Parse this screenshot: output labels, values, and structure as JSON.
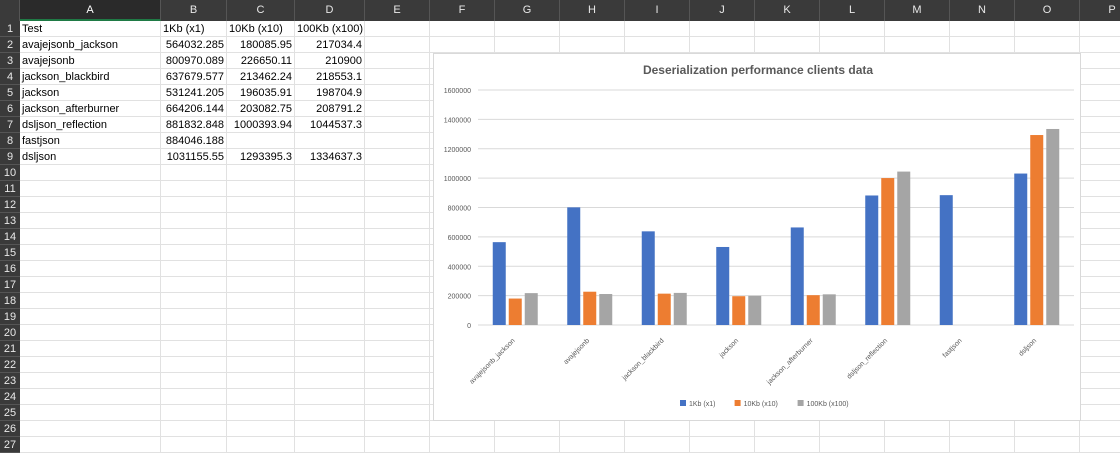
{
  "columns": [
    "A",
    "B",
    "C",
    "D",
    "E",
    "F",
    "G",
    "H",
    "I",
    "J",
    "K",
    "L",
    "M",
    "N",
    "O",
    "P"
  ],
  "selected_column": "A",
  "rows": [
    "1",
    "2",
    "3",
    "4",
    "5",
    "6",
    "7",
    "8",
    "9",
    "10",
    "11",
    "12",
    "13",
    "14",
    "15",
    "16",
    "17",
    "18",
    "19",
    "20",
    "21",
    "22",
    "23",
    "24",
    "25",
    "26",
    "27"
  ],
  "table": {
    "headers": [
      "Test",
      "1Kb (x1)",
      "10Kb (x10)",
      "100Kb (x100)"
    ],
    "data": [
      [
        "avajejsonb_jackson",
        "564032.285",
        "180085.95",
        "217034.4"
      ],
      [
        "avajejsonb",
        "800970.089",
        "226650.11",
        "210900"
      ],
      [
        "jackson_blackbird",
        "637679.577",
        "213462.24",
        "218553.1"
      ],
      [
        "jackson",
        "531241.205",
        "196035.91",
        "198704.9"
      ],
      [
        "jackson_afterburner",
        "664206.144",
        "203082.75",
        "208791.2"
      ],
      [
        "dsljson_reflection",
        "881832.848",
        "1000393.94",
        "1044537.3"
      ],
      [
        "fastjson",
        "884046.188",
        "",
        ""
      ],
      [
        "dsljson",
        "1031155.55",
        "1293395.3",
        "1334637.3"
      ]
    ]
  },
  "chart_data": {
    "type": "bar",
    "title": "Deserialization performance clients data",
    "categories": [
      "avajejsonb_jackson",
      "avajejsonb",
      "jackson_blackbird",
      "jackson",
      "jackson_afterburner",
      "dsljson_reflection",
      "fastjson",
      "dsljson"
    ],
    "series": [
      {
        "name": "1Kb (x1)",
        "color": "#4472c4",
        "values": [
          564032.285,
          800970.089,
          637679.577,
          531241.205,
          664206.144,
          881832.848,
          884046.188,
          1031155.55
        ]
      },
      {
        "name": "10Kb (x10)",
        "color": "#ed7d31",
        "values": [
          180085.95,
          226650.11,
          213462.24,
          196035.91,
          203082.75,
          1000393.94,
          null,
          1293395.3
        ]
      },
      {
        "name": "100Kb (x100)",
        "color": "#a5a5a5",
        "values": [
          217034.4,
          210900,
          218553.1,
          198704.9,
          208791.2,
          1044537.3,
          null,
          1334637.3
        ]
      }
    ],
    "y_ticks": [
      "0",
      "200000",
      "400000",
      "600000",
      "800000",
      "1000000",
      "1200000",
      "1400000",
      "1600000"
    ],
    "ylim": [
      0,
      1600000
    ],
    "grid": true,
    "legend_position": "bottom"
  }
}
